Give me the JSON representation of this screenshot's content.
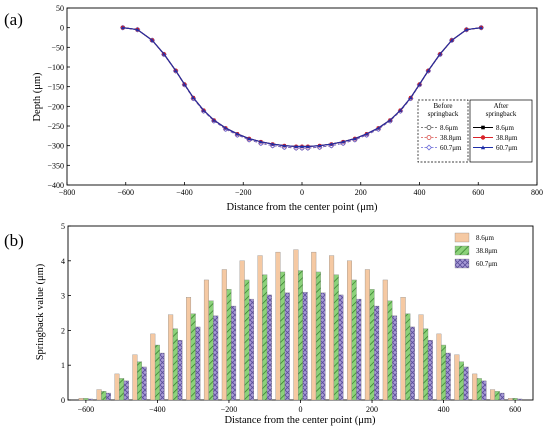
{
  "chart_data": [
    {
      "panel_label": "(a)",
      "type": "line",
      "xlabel": "Distance from the center point (μm)",
      "ylabel": "Depth (μm)",
      "xlim": [
        -800,
        800
      ],
      "ylim": [
        -400,
        50
      ],
      "x_ticks": [
        -800,
        -600,
        -400,
        -200,
        0,
        200,
        400,
        600,
        800
      ],
      "y_ticks": [
        50,
        0,
        -50,
        -100,
        -150,
        -200,
        -250,
        -300,
        -350,
        -400
      ],
      "x_tick_labels": [
        "−800",
        "−600",
        "−400",
        "−200",
        "0",
        "200",
        "400",
        "600",
        "800"
      ],
      "y_tick_labels": [
        "50",
        "0",
        "−50",
        "−100",
        "−150",
        "−200",
        "−250",
        "−300",
        "−350",
        "−400"
      ],
      "x": [
        -610,
        -560,
        -510,
        -470,
        -430,
        -400,
        -370,
        -335,
        -300,
        -260,
        -220,
        -180,
        -140,
        -100,
        -60,
        -20,
        0,
        20,
        60,
        100,
        140,
        180,
        220,
        260,
        300,
        335,
        370,
        400,
        430,
        470,
        510,
        560,
        610
      ],
      "series": [
        {
          "group": "before",
          "name": "8.6μm",
          "color": "#555555",
          "marker": "circle-open",
          "dash": true,
          "values": [
            0,
            -5,
            -32,
            -68,
            -110,
            -145,
            -180,
            -212,
            -237,
            -258,
            -273,
            -285,
            -294,
            -300,
            -304,
            -306,
            -306,
            -306,
            -304,
            -300,
            -294,
            -285,
            -273,
            -258,
            -237,
            -212,
            -180,
            -145,
            -110,
            -68,
            -32,
            -5,
            0
          ]
        },
        {
          "group": "before",
          "name": "38.8μm",
          "color": "#d9534f",
          "marker": "circle-open",
          "dash": true,
          "values": [
            0,
            -5,
            -32,
            -68,
            -110,
            -145,
            -180,
            -212,
            -237,
            -258,
            -273,
            -285,
            -294,
            -300,
            -304,
            -306,
            -306,
            -306,
            -304,
            -300,
            -294,
            -285,
            -273,
            -258,
            -237,
            -212,
            -180,
            -145,
            -110,
            -68,
            -32,
            -5,
            0
          ]
        },
        {
          "group": "before",
          "name": "60.7μm",
          "color": "#6a6ad8",
          "marker": "diamond-open",
          "dash": true,
          "values": [
            0,
            -5,
            -32,
            -68,
            -110,
            -145,
            -180,
            -212,
            -237,
            -258,
            -273,
            -285,
            -294,
            -300,
            -304,
            -306,
            -306,
            -306,
            -304,
            -300,
            -294,
            -285,
            -273,
            -258,
            -237,
            -212,
            -180,
            -145,
            -110,
            -68,
            -32,
            -5,
            0
          ]
        },
        {
          "group": "after",
          "name": "8.6μm",
          "color": "#000000",
          "marker": "square",
          "dash": false,
          "values": [
            0,
            -5,
            -32,
            -67,
            -109,
            -144,
            -178,
            -210,
            -235,
            -255,
            -270,
            -282,
            -290,
            -296,
            -300,
            -302,
            -302,
            -302,
            -300,
            -296,
            -290,
            -282,
            -270,
            -255,
            -235,
            -210,
            -178,
            -144,
            -109,
            -67,
            -32,
            -5,
            0
          ]
        },
        {
          "group": "after",
          "name": "38.8μm",
          "color": "#d9232a",
          "marker": "circle",
          "dash": false,
          "values": [
            0,
            -5,
            -32,
            -67,
            -109,
            -144,
            -178,
            -210,
            -235,
            -255,
            -270,
            -282,
            -290,
            -296,
            -300,
            -302,
            -302,
            -302,
            -300,
            -296,
            -290,
            -282,
            -270,
            -255,
            -235,
            -210,
            -178,
            -144,
            -109,
            -67,
            -32,
            -5,
            0
          ]
        },
        {
          "group": "after",
          "name": "60.7μm",
          "color": "#1f2fa8",
          "marker": "triangle",
          "dash": false,
          "values": [
            0,
            -5,
            -32,
            -67,
            -109,
            -144,
            -178,
            -210,
            -235,
            -255,
            -270,
            -282,
            -290,
            -296,
            -300,
            -302,
            -302,
            -302,
            -300,
            -296,
            -290,
            -282,
            -270,
            -255,
            -235,
            -210,
            -178,
            -144,
            -109,
            -67,
            -32,
            -5,
            0
          ]
        }
      ],
      "legend": {
        "before_title": [
          "Before",
          "springback"
        ],
        "after_title": [
          "After",
          "springback"
        ],
        "before_labels": [
          "8.6μm",
          "38.8μm",
          "60.7μm"
        ],
        "after_labels": [
          "8.6μm",
          "38.8μm",
          "60.7μm"
        ],
        "placement": "lower-right"
      }
    },
    {
      "panel_label": "(b)",
      "type": "bar",
      "xlabel": "Distance from the center point (μm)",
      "ylabel": "Springback value (μm)",
      "xlim": [
        -650,
        650
      ],
      "ylim": [
        0,
        5
      ],
      "x_ticks": [
        -600,
        -400,
        -200,
        0,
        200,
        400,
        600
      ],
      "x_tick_labels": [
        "−600",
        "−400",
        "−200",
        "0",
        "200",
        "400",
        "600"
      ],
      "y_ticks": [
        0,
        1,
        2,
        3,
        4,
        5
      ],
      "y_tick_labels": [
        "0",
        "1",
        "2",
        "3",
        "4",
        "5"
      ],
      "categories": [
        -600,
        -550,
        -500,
        -450,
        -400,
        -350,
        -300,
        -250,
        -200,
        -150,
        -100,
        -50,
        0,
        50,
        100,
        150,
        200,
        250,
        300,
        350,
        400,
        450,
        500,
        550,
        600
      ],
      "series": [
        {
          "name": "8.6μm",
          "color": "#f5c9a3",
          "pattern": "none",
          "values": [
            0.05,
            0.3,
            0.75,
            1.3,
            1.9,
            2.45,
            2.95,
            3.45,
            3.75,
            4.0,
            4.15,
            4.25,
            4.32,
            4.25,
            4.15,
            4.0,
            3.75,
            3.45,
            2.95,
            2.45,
            1.9,
            1.3,
            0.75,
            0.3,
            0.05
          ]
        },
        {
          "name": "38.8μm",
          "color": "#8cd27a",
          "pattern": "diag",
          "values": [
            0.05,
            0.25,
            0.62,
            1.1,
            1.58,
            2.05,
            2.48,
            2.85,
            3.18,
            3.45,
            3.6,
            3.68,
            3.72,
            3.68,
            3.6,
            3.45,
            3.18,
            2.85,
            2.48,
            2.05,
            1.58,
            1.1,
            0.62,
            0.25,
            0.05
          ]
        },
        {
          "name": "60.7μm",
          "color": "#a79ad6",
          "pattern": "cross",
          "values": [
            0.03,
            0.2,
            0.55,
            0.95,
            1.35,
            1.72,
            2.1,
            2.42,
            2.7,
            2.9,
            3.02,
            3.08,
            3.1,
            3.08,
            3.02,
            2.9,
            2.7,
            2.42,
            2.1,
            1.72,
            1.35,
            0.95,
            0.55,
            0.2,
            0.03
          ]
        }
      ],
      "legend_placement": "top-right"
    }
  ]
}
